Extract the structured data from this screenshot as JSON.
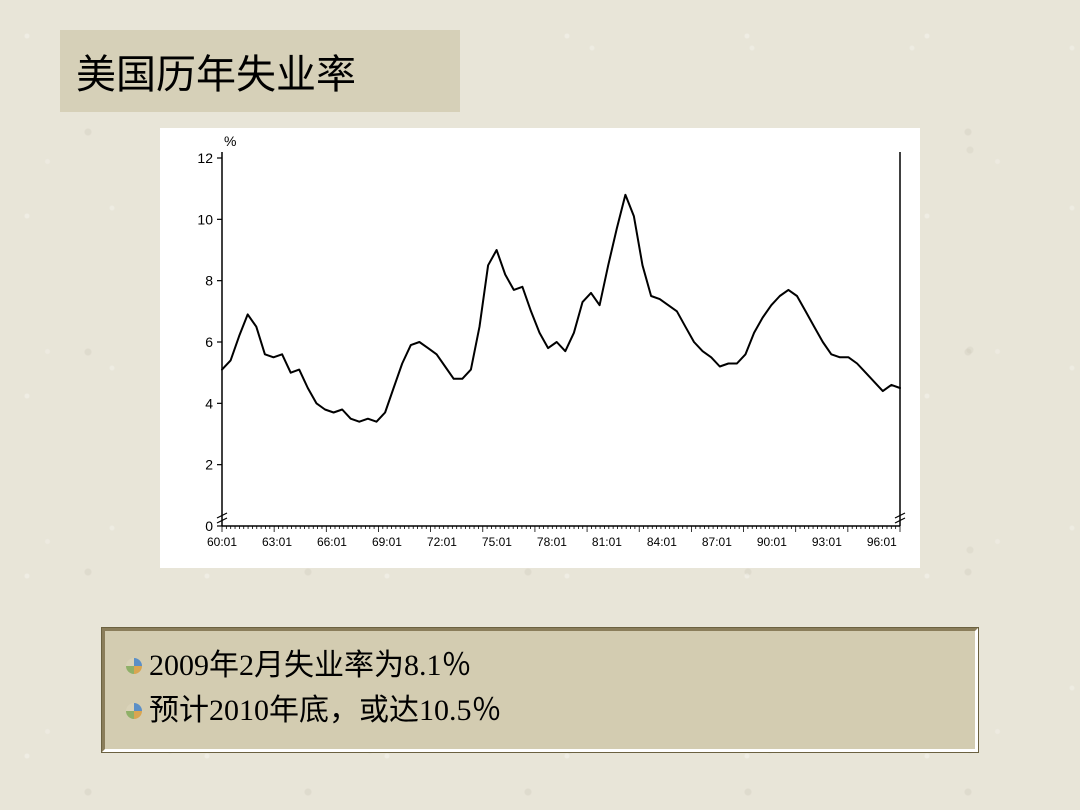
{
  "slide": {
    "title": "美国历年失业率",
    "title_bg": "#d6d0b8",
    "title_fontsize": 40,
    "background_color": "#e8e5d8"
  },
  "chart": {
    "type": "line",
    "y_unit_label": "%",
    "y_ticks": [
      0,
      2,
      4,
      6,
      8,
      10,
      12
    ],
    "y_tick_label_fontsize": 14,
    "ylim": [
      0,
      12
    ],
    "x_labels": [
      "60:01",
      "63:01",
      "66:01",
      "69:01",
      "72:01",
      "75:01",
      "78:01",
      "81:01",
      "84:01",
      "87:01",
      "90:01",
      "93:01",
      "96:01"
    ],
    "x_tick_label_fontsize": 12,
    "background_color": "#ffffff",
    "line_color": "#000000",
    "line_width": 2,
    "axis_color": "#000000",
    "series": [
      {
        "x": 0.0,
        "y": 5.1
      },
      {
        "x": 0.04,
        "y": 5.4
      },
      {
        "x": 0.08,
        "y": 6.2
      },
      {
        "x": 0.12,
        "y": 6.9
      },
      {
        "x": 0.16,
        "y": 6.5
      },
      {
        "x": 0.2,
        "y": 5.6
      },
      {
        "x": 0.24,
        "y": 5.5
      },
      {
        "x": 0.28,
        "y": 5.6
      },
      {
        "x": 0.32,
        "y": 5.0
      },
      {
        "x": 0.36,
        "y": 5.1
      },
      {
        "x": 0.4,
        "y": 4.5
      },
      {
        "x": 0.44,
        "y": 4.0
      },
      {
        "x": 0.48,
        "y": 3.8
      },
      {
        "x": 0.52,
        "y": 3.7
      },
      {
        "x": 0.56,
        "y": 3.8
      },
      {
        "x": 0.6,
        "y": 3.5
      },
      {
        "x": 0.64,
        "y": 3.4
      },
      {
        "x": 0.68,
        "y": 3.5
      },
      {
        "x": 0.72,
        "y": 3.4
      },
      {
        "x": 0.76,
        "y": 3.7
      },
      {
        "x": 0.8,
        "y": 4.5
      },
      {
        "x": 0.84,
        "y": 5.3
      },
      {
        "x": 0.88,
        "y": 5.9
      },
      {
        "x": 0.92,
        "y": 6.0
      },
      {
        "x": 0.96,
        "y": 5.8
      },
      {
        "x": 1.0,
        "y": 5.6
      },
      {
        "x": 1.04,
        "y": 5.2
      },
      {
        "x": 1.08,
        "y": 4.8
      },
      {
        "x": 1.12,
        "y": 4.8
      },
      {
        "x": 1.16,
        "y": 5.1
      },
      {
        "x": 1.2,
        "y": 6.5
      },
      {
        "x": 1.24,
        "y": 8.5
      },
      {
        "x": 1.28,
        "y": 9.0
      },
      {
        "x": 1.32,
        "y": 8.2
      },
      {
        "x": 1.36,
        "y": 7.7
      },
      {
        "x": 1.4,
        "y": 7.8
      },
      {
        "x": 1.44,
        "y": 7.0
      },
      {
        "x": 1.48,
        "y": 6.3
      },
      {
        "x": 1.52,
        "y": 5.8
      },
      {
        "x": 1.56,
        "y": 6.0
      },
      {
        "x": 1.6,
        "y": 5.7
      },
      {
        "x": 1.64,
        "y": 6.3
      },
      {
        "x": 1.68,
        "y": 7.3
      },
      {
        "x": 1.72,
        "y": 7.6
      },
      {
        "x": 1.76,
        "y": 7.2
      },
      {
        "x": 1.8,
        "y": 8.5
      },
      {
        "x": 1.84,
        "y": 9.7
      },
      {
        "x": 1.88,
        "y": 10.8
      },
      {
        "x": 1.92,
        "y": 10.1
      },
      {
        "x": 1.96,
        "y": 8.5
      },
      {
        "x": 2.0,
        "y": 7.5
      },
      {
        "x": 2.04,
        "y": 7.4
      },
      {
        "x": 2.08,
        "y": 7.2
      },
      {
        "x": 2.12,
        "y": 7.0
      },
      {
        "x": 2.16,
        "y": 6.5
      },
      {
        "x": 2.2,
        "y": 6.0
      },
      {
        "x": 2.24,
        "y": 5.7
      },
      {
        "x": 2.28,
        "y": 5.5
      },
      {
        "x": 2.32,
        "y": 5.2
      },
      {
        "x": 2.36,
        "y": 5.3
      },
      {
        "x": 2.4,
        "y": 5.3
      },
      {
        "x": 2.44,
        "y": 5.6
      },
      {
        "x": 2.48,
        "y": 6.3
      },
      {
        "x": 2.52,
        "y": 6.8
      },
      {
        "x": 2.56,
        "y": 7.2
      },
      {
        "x": 2.6,
        "y": 7.5
      },
      {
        "x": 2.64,
        "y": 7.7
      },
      {
        "x": 2.68,
        "y": 7.5
      },
      {
        "x": 2.72,
        "y": 7.0
      },
      {
        "x": 2.76,
        "y": 6.5
      },
      {
        "x": 2.8,
        "y": 6.0
      },
      {
        "x": 2.84,
        "y": 5.6
      },
      {
        "x": 2.88,
        "y": 5.5
      },
      {
        "x": 2.92,
        "y": 5.5
      },
      {
        "x": 2.96,
        "y": 5.3
      },
      {
        "x": 3.0,
        "y": 5.0
      },
      {
        "x": 3.04,
        "y": 4.7
      },
      {
        "x": 3.08,
        "y": 4.4
      },
      {
        "x": 3.12,
        "y": 4.6
      },
      {
        "x": 3.16,
        "y": 4.5
      }
    ]
  },
  "captions": {
    "box_bg": "#d3ccb1",
    "border_light": "#ffffff",
    "border_dark": "#8a7d5a",
    "fontsize": 30,
    "items": [
      "2009年2月失业率为8.1％",
      "预计2010年底，或达10.5％"
    ]
  },
  "bullet_icon": {
    "colors": [
      "#5b8fc7",
      "#d9a551",
      "#8fb068",
      "#d9d2b8"
    ]
  }
}
